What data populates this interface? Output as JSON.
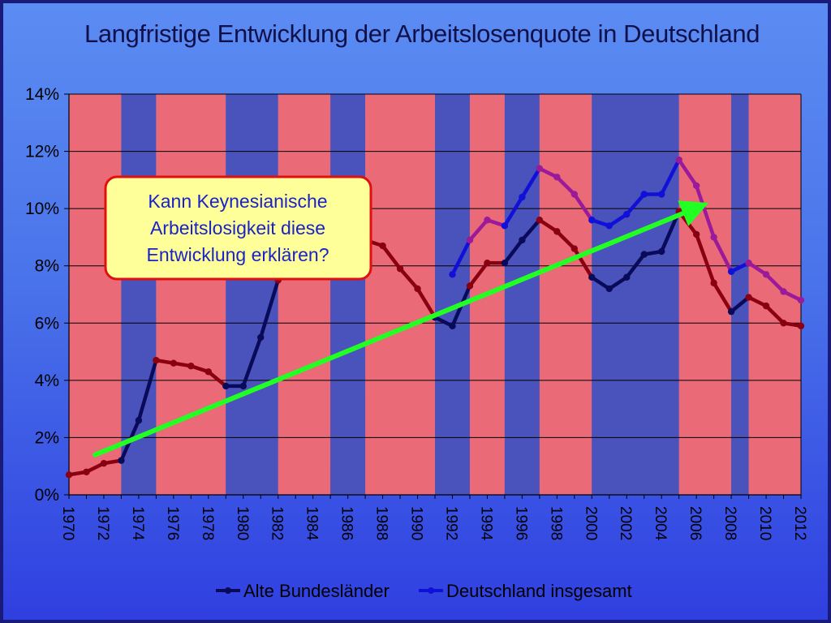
{
  "colors": {
    "red_band": "#ea6a78",
    "blue_band": "#4a52bc",
    "west_line": "#8a0010",
    "west_line_blue_phase": "#0a0a5a",
    "total_line": "#1010d8",
    "total_line_red_phase": "#9a1a9a",
    "arrow": "#22ff22",
    "callout_fill": "#ffff99",
    "callout_border": "#e01010"
  },
  "chart_data": {
    "type": "line",
    "title": "Langfristige Entwicklung der Arbeitslosenquote in Deutschland",
    "xlabel": "",
    "ylabel": "",
    "xlim": [
      1970,
      2012
    ],
    "ylim": [
      0,
      14
    ],
    "y_ticks": [
      "0%",
      "2%",
      "4%",
      "6%",
      "8%",
      "10%",
      "12%",
      "14%"
    ],
    "x_ticks": [
      "1970",
      "1972",
      "1974",
      "1976",
      "1978",
      "1980",
      "1982",
      "1984",
      "1986",
      "1988",
      "1990",
      "1992",
      "1994",
      "1996",
      "1998",
      "2000",
      "2002",
      "2004",
      "2006",
      "2008",
      "2010",
      "2012"
    ],
    "grid": true,
    "legend_position": "bottom",
    "series": [
      {
        "name": "Alte Bundesländer",
        "x": [
          1970,
          1971,
          1972,
          1973,
          1974,
          1975,
          1976,
          1977,
          1978,
          1979,
          1980,
          1981,
          1982,
          1983,
          1984,
          1985,
          1986,
          1987,
          1988,
          1989,
          1990,
          1991,
          1992,
          1993,
          1994,
          1995,
          1996,
          1997,
          1998,
          1999,
          2000,
          2001,
          2002,
          2003,
          2004,
          2005,
          2006,
          2007,
          2008,
          2009,
          2010,
          2011,
          2012
        ],
        "values": [
          0.7,
          0.8,
          1.1,
          1.2,
          2.6,
          4.7,
          4.6,
          4.5,
          4.3,
          3.8,
          3.8,
          5.5,
          7.5,
          9.1,
          9.1,
          9.3,
          9.0,
          8.9,
          8.7,
          7.9,
          7.2,
          6.2,
          5.9,
          7.3,
          8.1,
          8.1,
          8.9,
          9.6,
          9.2,
          8.6,
          7.6,
          7.2,
          7.6,
          8.4,
          8.5,
          9.9,
          9.1,
          7.4,
          6.4,
          6.9,
          6.6,
          6.0,
          5.9
        ]
      },
      {
        "name": "Deutschland insgesamt",
        "x": [
          1992,
          1993,
          1994,
          1995,
          1996,
          1997,
          1998,
          1999,
          2000,
          2001,
          2002,
          2003,
          2004,
          2005,
          2006,
          2007,
          2008,
          2009,
          2010,
          2011,
          2012
        ],
        "values": [
          7.7,
          8.9,
          9.6,
          9.4,
          10.4,
          11.4,
          11.1,
          10.5,
          9.6,
          9.4,
          9.8,
          10.5,
          10.5,
          11.7,
          10.8,
          9.0,
          7.8,
          8.1,
          7.7,
          7.1,
          6.8
        ]
      }
    ],
    "background_bands": [
      {
        "from": 1970,
        "to": 1973,
        "color": "red"
      },
      {
        "from": 1973,
        "to": 1975,
        "color": "blue"
      },
      {
        "from": 1975,
        "to": 1979,
        "color": "red"
      },
      {
        "from": 1979,
        "to": 1982,
        "color": "blue"
      },
      {
        "from": 1982,
        "to": 1985,
        "color": "red"
      },
      {
        "from": 1985,
        "to": 1987,
        "color": "blue"
      },
      {
        "from": 1987,
        "to": 1991,
        "color": "red"
      },
      {
        "from": 1991,
        "to": 1993,
        "color": "blue"
      },
      {
        "from": 1993,
        "to": 1995,
        "color": "red"
      },
      {
        "from": 1995,
        "to": 1997,
        "color": "blue"
      },
      {
        "from": 1997,
        "to": 2000,
        "color": "red"
      },
      {
        "from": 2000,
        "to": 2005,
        "color": "blue"
      },
      {
        "from": 2005,
        "to": 2008,
        "color": "red"
      },
      {
        "from": 2008,
        "to": 2009,
        "color": "blue"
      },
      {
        "from": 2009,
        "to": 2012,
        "color": "red"
      }
    ],
    "trend_arrow": {
      "from": [
        1971.5,
        1.4
      ],
      "to": [
        2006.7,
        10.2
      ]
    },
    "annotation": {
      "lines": [
        "Kann Keynesianische",
        "Arbeitslosigkeit diese",
        "Entwicklung erklären?"
      ]
    }
  }
}
